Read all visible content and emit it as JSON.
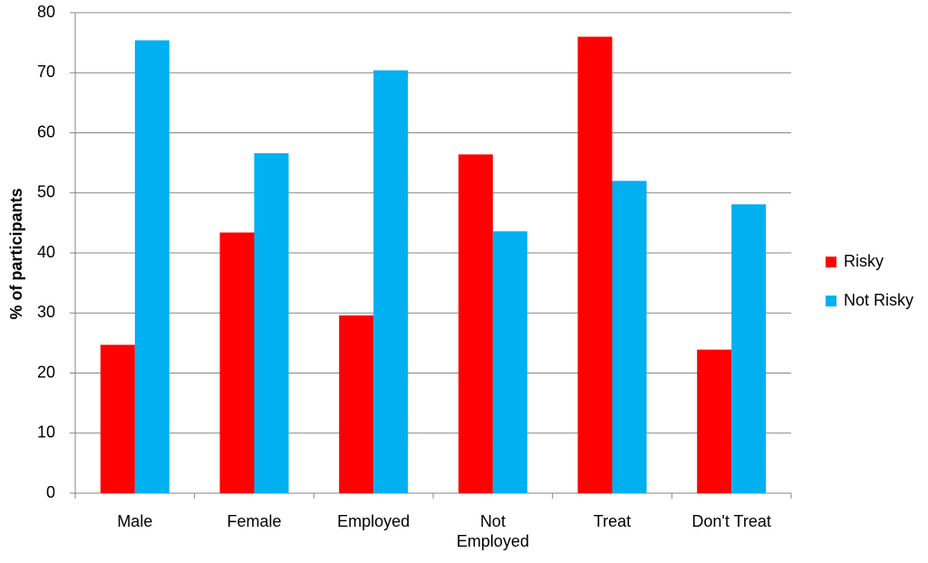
{
  "chart_data": {
    "type": "bar",
    "y_label": "% of participants",
    "categories": [
      "Male",
      "Female",
      "Employed",
      "Not Employed",
      "Treat",
      "Don't Treat"
    ],
    "series": [
      {
        "name": "Risky",
        "color": "#ff0000",
        "values": [
          24.7,
          43.4,
          29.6,
          56.4,
          76.0,
          23.9
        ]
      },
      {
        "name": "Not Risky",
        "color": "#00b0f0",
        "values": [
          75.4,
          56.6,
          70.4,
          43.6,
          52.0,
          48.1
        ]
      }
    ],
    "ylim": [
      0,
      80
    ],
    "yticks": [
      0,
      10,
      20,
      30,
      40,
      50,
      60,
      70,
      80
    ],
    "grid": true,
    "legend": "right"
  }
}
